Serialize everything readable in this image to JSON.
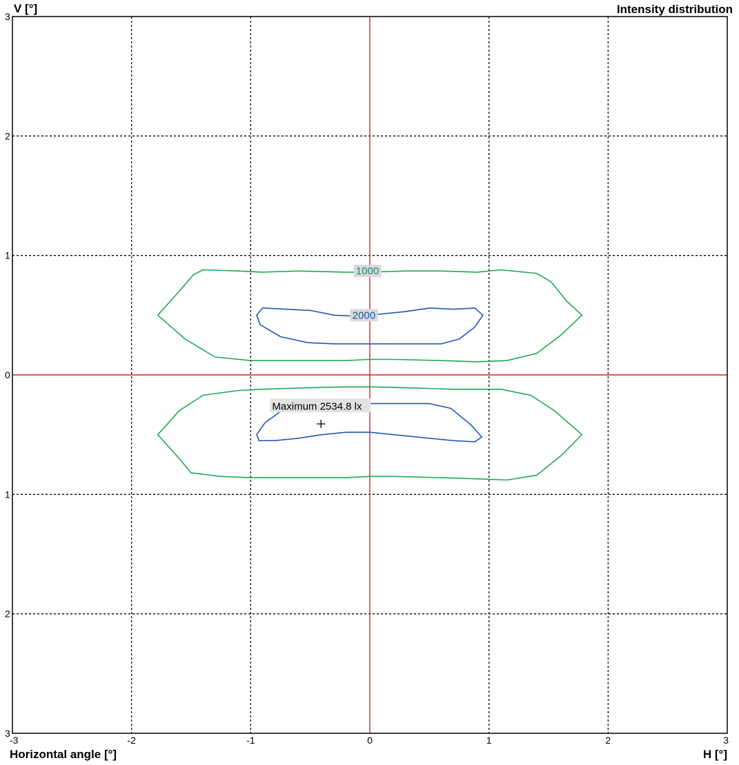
{
  "header": {
    "v_axis_label": "V [°]",
    "title": "Intensity distribution"
  },
  "footer": {
    "x_axis_label": "Horizontal angle [°]",
    "h_axis_label": "H [°]"
  },
  "chart_data": {
    "type": "contour",
    "title": "Intensity distribution",
    "xlabel": "Horizontal angle [°]",
    "ylabel": "V [°]",
    "xlim": [
      -3,
      3
    ],
    "ylim": [
      -3,
      3
    ],
    "x_ticks": [
      "-3",
      "-2",
      "-1",
      "0",
      "1",
      "2",
      "3"
    ],
    "y_ticks_top_to_bottom": [
      "3",
      "2",
      "1",
      "0",
      "1",
      "2",
      "3"
    ],
    "grid": true,
    "grid_style": "dotted",
    "crosshair_color": "#e0202a",
    "levels": [
      {
        "label": "1000",
        "color": "#1ea84e",
        "label_color": "#1a8a7a",
        "label_position": [
          -0.02,
          0.87
        ],
        "contours": [
          [
            [
              -1.78,
              0.5
            ],
            [
              -1.6,
              0.7
            ],
            [
              -1.48,
              0.84
            ],
            [
              -1.4,
              0.88
            ],
            [
              -1.1,
              0.87
            ],
            [
              -0.9,
              0.86
            ],
            [
              -0.6,
              0.87
            ],
            [
              -0.2,
              0.86
            ],
            [
              0.0,
              0.86
            ],
            [
              0.3,
              0.87
            ],
            [
              0.6,
              0.87
            ],
            [
              0.9,
              0.86
            ],
            [
              1.1,
              0.88
            ],
            [
              1.4,
              0.85
            ],
            [
              1.52,
              0.78
            ],
            [
              1.65,
              0.62
            ],
            [
              1.78,
              0.5
            ],
            [
              1.6,
              0.33
            ],
            [
              1.4,
              0.18
            ],
            [
              1.15,
              0.12
            ],
            [
              0.9,
              0.11
            ],
            [
              0.6,
              0.12
            ],
            [
              0.2,
              0.13
            ],
            [
              0.0,
              0.13
            ],
            [
              -0.2,
              0.12
            ],
            [
              -0.6,
              0.12
            ],
            [
              -1.0,
              0.12
            ],
            [
              -1.3,
              0.15
            ],
            [
              -1.55,
              0.3
            ],
            [
              -1.78,
              0.5
            ]
          ],
          [
            [
              -1.78,
              -0.5
            ],
            [
              -1.6,
              -0.3
            ],
            [
              -1.4,
              -0.17
            ],
            [
              -1.1,
              -0.13
            ],
            [
              -0.9,
              -0.12
            ],
            [
              -0.6,
              -0.11
            ],
            [
              -0.2,
              -0.1
            ],
            [
              0.0,
              -0.1
            ],
            [
              0.4,
              -0.11
            ],
            [
              0.7,
              -0.12
            ],
            [
              1.1,
              -0.12
            ],
            [
              1.35,
              -0.17
            ],
            [
              1.55,
              -0.3
            ],
            [
              1.78,
              -0.5
            ],
            [
              1.6,
              -0.68
            ],
            [
              1.4,
              -0.84
            ],
            [
              1.15,
              -0.88
            ],
            [
              0.9,
              -0.87
            ],
            [
              0.6,
              -0.86
            ],
            [
              0.2,
              -0.85
            ],
            [
              0.0,
              -0.85
            ],
            [
              -0.2,
              -0.86
            ],
            [
              -0.6,
              -0.86
            ],
            [
              -1.0,
              -0.86
            ],
            [
              -1.25,
              -0.85
            ],
            [
              -1.5,
              -0.82
            ],
            [
              -1.6,
              -0.7
            ],
            [
              -1.78,
              -0.5
            ]
          ]
        ]
      },
      {
        "label": "2000",
        "color": "#2058b0",
        "label_color": "#2058b0",
        "label_position": [
          -0.05,
          0.5
        ],
        "contours": [
          [
            [
              -0.95,
              0.5
            ],
            [
              -0.9,
              0.56
            ],
            [
              -0.7,
              0.55
            ],
            [
              -0.5,
              0.54
            ],
            [
              -0.3,
              0.5
            ],
            [
              -0.1,
              0.49
            ],
            [
              0.1,
              0.51
            ],
            [
              0.3,
              0.53
            ],
            [
              0.5,
              0.56
            ],
            [
              0.7,
              0.55
            ],
            [
              0.88,
              0.56
            ],
            [
              0.95,
              0.5
            ],
            [
              0.88,
              0.4
            ],
            [
              0.75,
              0.3
            ],
            [
              0.6,
              0.26
            ],
            [
              0.3,
              0.26
            ],
            [
              0.0,
              0.26
            ],
            [
              -0.3,
              0.26
            ],
            [
              -0.52,
              0.27
            ],
            [
              -0.75,
              0.32
            ],
            [
              -0.92,
              0.42
            ],
            [
              -0.95,
              0.5
            ]
          ],
          [
            [
              -0.95,
              -0.5
            ],
            [
              -0.88,
              -0.4
            ],
            [
              -0.74,
              -0.3
            ],
            [
              -0.5,
              -0.24
            ],
            [
              -0.2,
              -0.24
            ],
            [
              0.0,
              -0.24
            ],
            [
              0.3,
              -0.24
            ],
            [
              0.5,
              -0.24
            ],
            [
              0.68,
              -0.28
            ],
            [
              0.85,
              -0.42
            ],
            [
              0.94,
              -0.52
            ],
            [
              0.88,
              -0.56
            ],
            [
              0.7,
              -0.55
            ],
            [
              0.5,
              -0.53
            ],
            [
              0.3,
              -0.51
            ],
            [
              0.0,
              -0.48
            ],
            [
              -0.2,
              -0.48
            ],
            [
              -0.4,
              -0.5
            ],
            [
              -0.6,
              -0.53
            ],
            [
              -0.8,
              -0.55
            ],
            [
              -0.93,
              -0.55
            ],
            [
              -0.95,
              -0.5
            ]
          ]
        ]
      }
    ],
    "maximum": {
      "label": "Maximum 2534.8 lx",
      "value": 2534.8,
      "unit": "lx",
      "x": -0.41,
      "y": -0.41,
      "label_anchor": [
        -0.82,
        -0.29
      ]
    }
  }
}
